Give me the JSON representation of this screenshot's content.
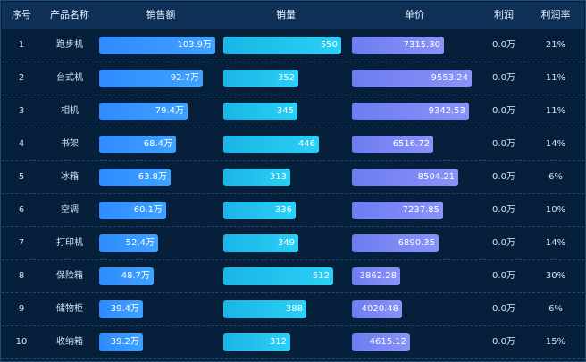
{
  "headers": [
    "序号",
    "产品名称",
    "销售额",
    "销量",
    "单价",
    "利润",
    "利润率"
  ],
  "colors": {
    "background": "#06203c",
    "header_bg": "#0e2f56",
    "sales_bar": "#3197ff",
    "qty_bar": "#22c4ee",
    "price_bar": "#7d88f4"
  },
  "chart_data": {
    "type": "table",
    "columns": [
      "序号",
      "产品名称",
      "销售额",
      "销量",
      "单价",
      "利润",
      "利润率"
    ],
    "rows": [
      {
        "index": "1",
        "name": "跑步机",
        "sales": 103.9,
        "sales_label": "103.9万",
        "qty": 550,
        "qty_label": "550",
        "price": 7315.3,
        "price_label": "7315.30",
        "profit": "0.0万",
        "rate": "21%"
      },
      {
        "index": "2",
        "name": "台式机",
        "sales": 92.7,
        "sales_label": "92.7万",
        "qty": 352,
        "qty_label": "352",
        "price": 9553.24,
        "price_label": "9553.24",
        "profit": "0.0万",
        "rate": "11%"
      },
      {
        "index": "3",
        "name": "相机",
        "sales": 79.4,
        "sales_label": "79.4万",
        "qty": 345,
        "qty_label": "345",
        "price": 9342.53,
        "price_label": "9342.53",
        "profit": "0.0万",
        "rate": "11%"
      },
      {
        "index": "4",
        "name": "书架",
        "sales": 68.4,
        "sales_label": "68.4万",
        "qty": 446,
        "qty_label": "446",
        "price": 6516.72,
        "price_label": "6516.72",
        "profit": "0.0万",
        "rate": "14%"
      },
      {
        "index": "5",
        "name": "冰箱",
        "sales": 63.8,
        "sales_label": "63.8万",
        "qty": 313,
        "qty_label": "313",
        "price": 8504.21,
        "price_label": "8504.21",
        "profit": "0.0万",
        "rate": "6%"
      },
      {
        "index": "6",
        "name": "空调",
        "sales": 60.1,
        "sales_label": "60.1万",
        "qty": 336,
        "qty_label": "336",
        "price": 7237.85,
        "price_label": "7237.85",
        "profit": "0.0万",
        "rate": "10%"
      },
      {
        "index": "7",
        "name": "打印机",
        "sales": 52.4,
        "sales_label": "52.4万",
        "qty": 349,
        "qty_label": "349",
        "price": 6890.35,
        "price_label": "6890.35",
        "profit": "0.0万",
        "rate": "14%"
      },
      {
        "index": "8",
        "name": "保险箱",
        "sales": 48.7,
        "sales_label": "48.7万",
        "qty": 512,
        "qty_label": "512",
        "price": 3862.28,
        "price_label": "3862.28",
        "profit": "0.0万",
        "rate": "30%"
      },
      {
        "index": "9",
        "name": "储物柜",
        "sales": 39.4,
        "sales_label": "39.4万",
        "qty": 388,
        "qty_label": "388",
        "price": 4020.48,
        "price_label": "4020.48",
        "profit": "0.0万",
        "rate": "6%"
      },
      {
        "index": "10",
        "name": "收纳箱",
        "sales": 39.2,
        "sales_label": "39.2万",
        "qty": 312,
        "qty_label": "312",
        "price": 4615.12,
        "price_label": "4615.12",
        "profit": "0.0万",
        "rate": "15%"
      }
    ]
  }
}
